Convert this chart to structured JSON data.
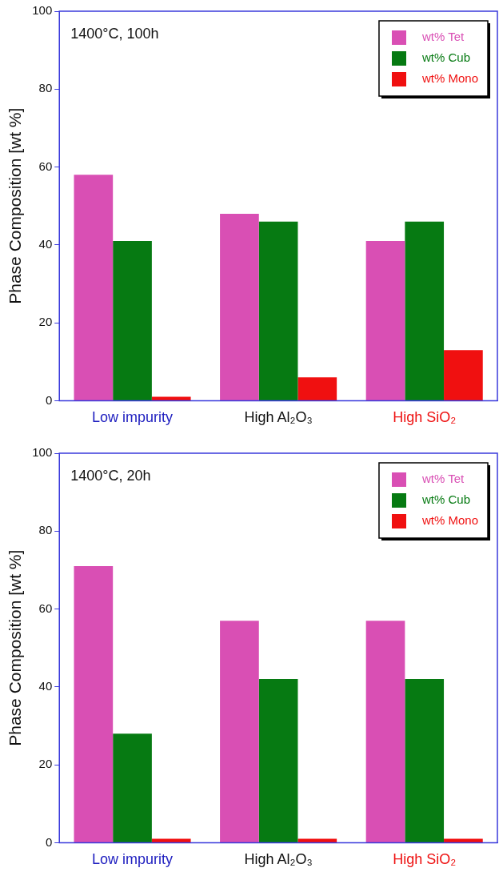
{
  "chart_data": [
    {
      "type": "bar",
      "ylabel": "Phase Composition [wt %]",
      "annotations": [
        "1400°C, 100h"
      ],
      "categories": [
        "Low impurity",
        "High Al₂O₃",
        "High SiO₂"
      ],
      "series": [
        {
          "name": "wt% Tet",
          "color": "#d94fb4",
          "values": [
            58,
            48,
            41
          ]
        },
        {
          "name": "wt% Cub",
          "color": "#067a12",
          "values": [
            41,
            46,
            46
          ]
        },
        {
          "name": "wt% Mono",
          "color": "#f01010",
          "values": [
            1,
            6,
            13
          ]
        }
      ],
      "ylim": [
        0,
        100
      ],
      "yticks": [
        0,
        20,
        40,
        60,
        80,
        100
      ],
      "legend": "top right"
    },
    {
      "type": "bar",
      "ylabel": "Phase Composition [wt %]",
      "annotations": [
        "1400°C, 20h"
      ],
      "categories": [
        "Low impurity",
        "High Al₂O₃",
        "High SiO₂"
      ],
      "series": [
        {
          "name": "wt% Tet",
          "color": "#d94fb4",
          "values": [
            71,
            57,
            57
          ]
        },
        {
          "name": "wt% Cub",
          "color": "#067a12",
          "values": [
            28,
            42,
            42
          ]
        },
        {
          "name": "wt% Mono",
          "color": "#f01010",
          "values": [
            1,
            1,
            1
          ]
        }
      ],
      "ylim": [
        0,
        100
      ],
      "yticks": [
        0,
        20,
        40,
        60,
        80,
        100
      ],
      "legend": "top right"
    }
  ]
}
